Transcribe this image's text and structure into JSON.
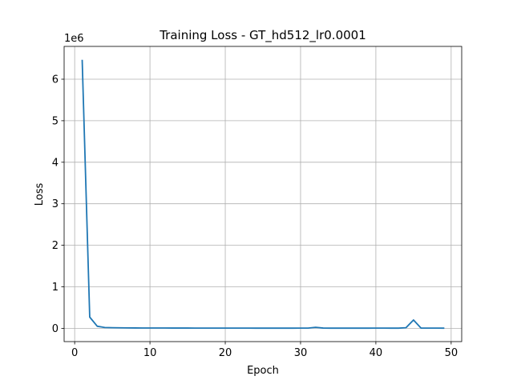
{
  "chart_data": {
    "type": "line",
    "title": "Training Loss - GT_hd512_lr0.0001",
    "xlabel": "Epoch",
    "ylabel": "Loss",
    "y_offset_label": "1e6",
    "xlim": [
      -1.4,
      51.4
    ],
    "ylim": [
      -0.32,
      6.79
    ],
    "y_scale_factor": 1000000,
    "grid": true,
    "xticks": [
      0,
      10,
      20,
      30,
      40,
      50
    ],
    "yticks": [
      0,
      1,
      2,
      3,
      4,
      5,
      6
    ],
    "series": [
      {
        "color": "#1f77b4",
        "x": [
          1,
          2,
          3,
          4,
          5,
          6,
          7,
          8,
          9,
          10,
          11,
          12,
          13,
          14,
          15,
          16,
          17,
          18,
          19,
          20,
          21,
          22,
          23,
          24,
          25,
          26,
          27,
          28,
          29,
          30,
          31,
          32,
          33,
          34,
          35,
          36,
          37,
          38,
          39,
          40,
          41,
          42,
          43,
          44,
          45,
          46,
          47,
          48,
          49
        ],
        "y": [
          6450000,
          270000,
          50000,
          20000,
          15000,
          12000,
          10000,
          9000,
          8000,
          8000,
          7000,
          7000,
          6000,
          6000,
          6000,
          5000,
          5000,
          5000,
          5000,
          5000,
          5000,
          5000,
          5000,
          4000,
          4000,
          4000,
          4000,
          4000,
          4000,
          5000,
          5000,
          25000,
          6000,
          4000,
          4000,
          4000,
          4000,
          4000,
          4000,
          5000,
          5000,
          4000,
          4000,
          15000,
          200000,
          6000,
          5000,
          5000,
          4000
        ]
      }
    ]
  }
}
